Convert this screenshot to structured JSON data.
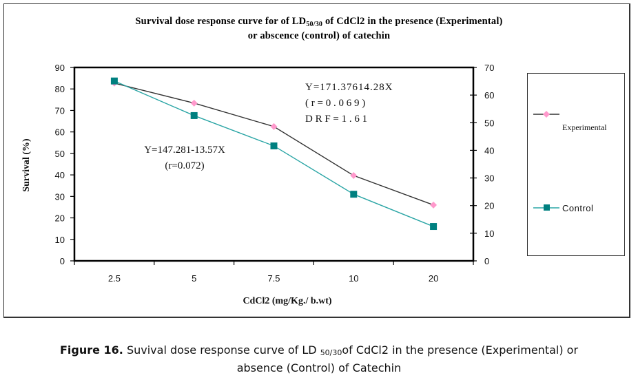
{
  "chart_data": {
    "type": "line",
    "title_parts": {
      "prefix": "Survival dose response curve for  of LD",
      "subscript": "50/30",
      "suffix": " of CdCl2  in the presence (Experimental)",
      "line2": "or abscence (control) of catechin"
    },
    "xlabel": "CdCl2 (mg/Kg./ b.wt)",
    "ylabel": "Survival (%)",
    "categories": [
      "2.5",
      "5",
      "7.5",
      "10",
      "20"
    ],
    "ylim": [
      0,
      90
    ],
    "yticks": [
      0,
      10,
      20,
      30,
      40,
      50,
      60,
      70,
      80,
      90
    ],
    "y2lim": [
      0,
      70
    ],
    "y2ticks": [
      0,
      10,
      20,
      30,
      40,
      50,
      60,
      70
    ],
    "grid": false,
    "legend_position": "right",
    "series": [
      {
        "name": "Experimental",
        "color": "#333333",
        "marker": "diamond",
        "marker_color": "#ff99cc",
        "values": [
          82.7,
          73.4,
          62.5,
          39.7,
          26.0
        ]
      },
      {
        "name": "Control",
        "color": "#2aa5a5",
        "marker": "square",
        "marker_color": "#008080",
        "values": [
          83.7,
          67.6,
          53.5,
          31.0,
          16.0
        ]
      }
    ],
    "annotations": {
      "experimental_eq": [
        "Y=171.37614.28X",
        "( r = 0 . 0 6 9 )",
        "D R F = 1 . 6 1"
      ],
      "control_eq": [
        "Y=147.281-13.57X",
        "(r=0.072)"
      ]
    }
  },
  "caption": {
    "label": "Figure 16.",
    "text_a": " Suvival dose response curve of LD ",
    "subscript": "50/30",
    "text_b": "of CdCl2 in the presence (Experimental) or",
    "line2": "absence (Control) of Catechin"
  }
}
